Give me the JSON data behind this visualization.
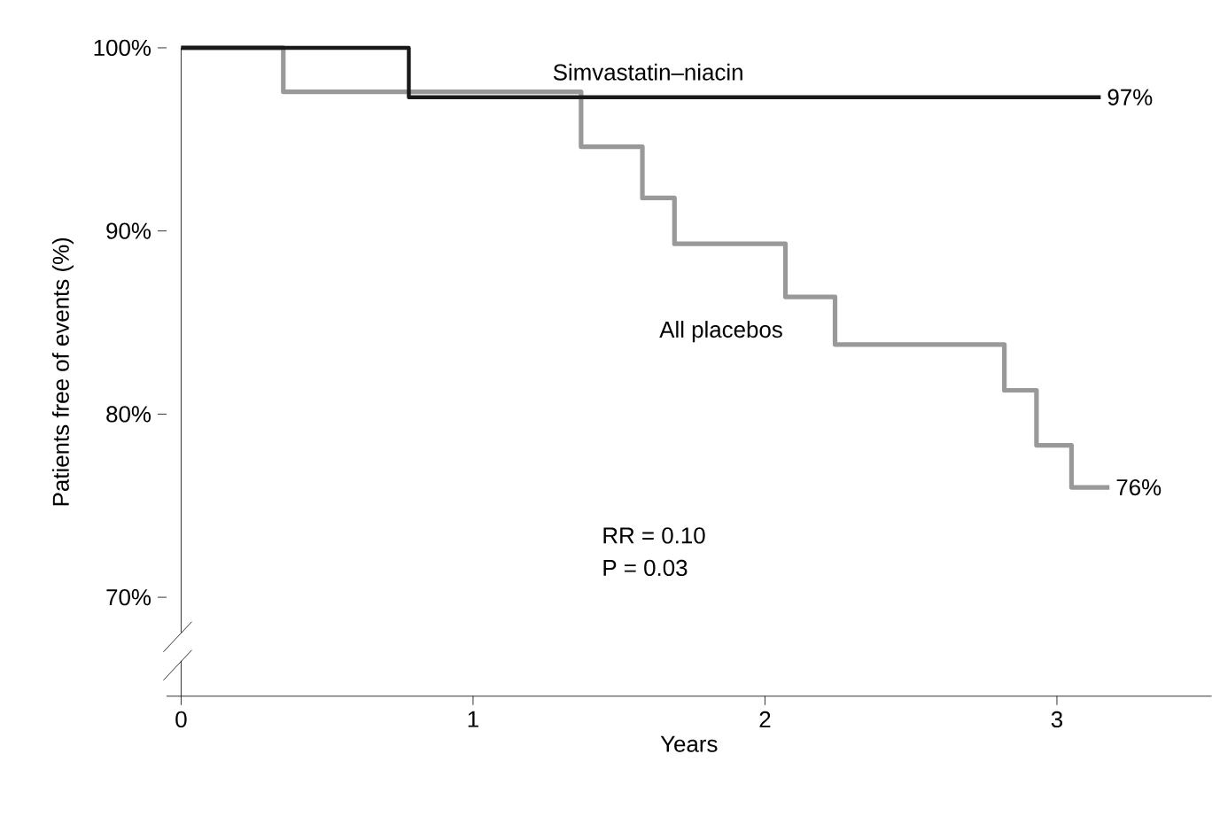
{
  "chart_data": {
    "type": "step",
    "xlabel": "Years",
    "ylabel": "Patients free of events (%)",
    "xlim": [
      -0.05,
      3.53
    ],
    "ylim": [
      64.6,
      100
    ],
    "xticks": [
      0,
      1,
      2,
      3
    ],
    "yticks": [
      {
        "value": 70,
        "label": "70%"
      },
      {
        "value": 80,
        "label": "80%"
      },
      {
        "value": 90,
        "label": "90%"
      },
      {
        "value": 100,
        "label": "100%"
      }
    ],
    "series": [
      {
        "name": "Simvastatin–niacin",
        "color": "#1a1a1a",
        "x": [
          0,
          0.78,
          3.15
        ],
        "values": [
          100,
          97.3,
          97.3
        ],
        "value_labels": [
          null,
          null,
          "97%"
        ]
      },
      {
        "name": "All placebos",
        "color": "#999999",
        "x": [
          0,
          0.35,
          1.37,
          1.58,
          1.69,
          2.07,
          2.24,
          2.82,
          2.93,
          3.05,
          3.18
        ],
        "values": [
          100,
          97.6,
          94.6,
          91.8,
          89.3,
          86.4,
          83.8,
          81.3,
          78.3,
          76.0,
          76.0
        ],
        "value_labels": [
          null,
          null,
          null,
          null,
          null,
          null,
          null,
          null,
          null,
          null,
          "76%"
        ]
      }
    ],
    "annotations": [
      "RR = 0.10",
      "P = 0.03"
    ],
    "grid": false
  }
}
